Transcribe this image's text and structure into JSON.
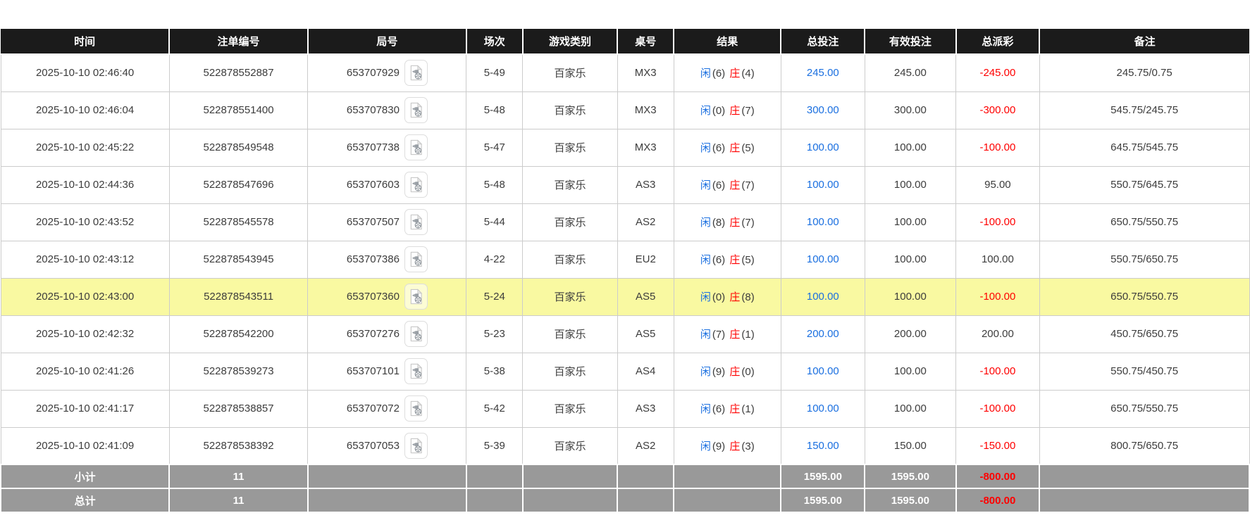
{
  "colors": {
    "header_bg": "#1b1b1b",
    "header_text": "#ffffff",
    "border": "#cccccc",
    "highlight_row_bg": "#f9f9a1",
    "player_blue": "#1a6fe0",
    "banker_red": "#ff0000",
    "negative_red": "#ff0000",
    "footer_bg": "#999999",
    "footer_text": "#ffffff"
  },
  "table": {
    "columns": [
      {
        "key": "time",
        "label": "时间",
        "width": 13.5
      },
      {
        "key": "bet_id",
        "label": "注单编号",
        "width": 11.1
      },
      {
        "key": "round",
        "label": "局号",
        "width": 12.7
      },
      {
        "key": "session",
        "label": "场次",
        "width": 4.5
      },
      {
        "key": "game_type",
        "label": "游戏类别",
        "width": 7.6
      },
      {
        "key": "table_no",
        "label": "桌号",
        "width": 4.5
      },
      {
        "key": "result",
        "label": "结果",
        "width": 8.6
      },
      {
        "key": "total_bet",
        "label": "总投注",
        "width": 6.7
      },
      {
        "key": "valid_bet",
        "label": "有效投注",
        "width": 7.3
      },
      {
        "key": "payout",
        "label": "总派彩",
        "width": 6.7
      },
      {
        "key": "remark",
        "label": "备注",
        "width": 16.8
      }
    ],
    "icons": {
      "round_video": "video-file-icon"
    },
    "rows": [
      {
        "time": "2025-10-10 02:46:40",
        "bet_id": "522878552887",
        "round": "653707929",
        "session": "5-49",
        "game_type": "百家乐",
        "table_no": "MX3",
        "result": {
          "player": "闲",
          "player_score": "(6)",
          "banker": "庄",
          "banker_score": "(4)"
        },
        "total_bet": "245.00",
        "valid_bet": "245.00",
        "payout": "-245.00",
        "remark": "245.75/0.75",
        "highlighted": false
      },
      {
        "time": "2025-10-10 02:46:04",
        "bet_id": "522878551400",
        "round": "653707830",
        "session": "5-48",
        "game_type": "百家乐",
        "table_no": "MX3",
        "result": {
          "player": "闲",
          "player_score": "(0)",
          "banker": "庄",
          "banker_score": "(7)"
        },
        "total_bet": "300.00",
        "valid_bet": "300.00",
        "payout": "-300.00",
        "remark": "545.75/245.75",
        "highlighted": false
      },
      {
        "time": "2025-10-10 02:45:22",
        "bet_id": "522878549548",
        "round": "653707738",
        "session": "5-47",
        "game_type": "百家乐",
        "table_no": "MX3",
        "result": {
          "player": "闲",
          "player_score": "(6)",
          "banker": "庄",
          "banker_score": "(5)"
        },
        "total_bet": "100.00",
        "valid_bet": "100.00",
        "payout": "-100.00",
        "remark": "645.75/545.75",
        "highlighted": false
      },
      {
        "time": "2025-10-10 02:44:36",
        "bet_id": "522878547696",
        "round": "653707603",
        "session": "5-48",
        "game_type": "百家乐",
        "table_no": "AS3",
        "result": {
          "player": "闲",
          "player_score": "(6)",
          "banker": "庄",
          "banker_score": "(7)"
        },
        "total_bet": "100.00",
        "valid_bet": "100.00",
        "payout": "95.00",
        "remark": "550.75/645.75",
        "highlighted": false
      },
      {
        "time": "2025-10-10 02:43:52",
        "bet_id": "522878545578",
        "round": "653707507",
        "session": "5-44",
        "game_type": "百家乐",
        "table_no": "AS2",
        "result": {
          "player": "闲",
          "player_score": "(8)",
          "banker": "庄",
          "banker_score": "(7)"
        },
        "total_bet": "100.00",
        "valid_bet": "100.00",
        "payout": "-100.00",
        "remark": "650.75/550.75",
        "highlighted": false
      },
      {
        "time": "2025-10-10 02:43:12",
        "bet_id": "522878543945",
        "round": "653707386",
        "session": "4-22",
        "game_type": "百家乐",
        "table_no": "EU2",
        "result": {
          "player": "闲",
          "player_score": "(6)",
          "banker": "庄",
          "banker_score": "(5)"
        },
        "total_bet": "100.00",
        "valid_bet": "100.00",
        "payout": "100.00",
        "remark": "550.75/650.75",
        "highlighted": false
      },
      {
        "time": "2025-10-10 02:43:00",
        "bet_id": "522878543511",
        "round": "653707360",
        "session": "5-24",
        "game_type": "百家乐",
        "table_no": "AS5",
        "result": {
          "player": "闲",
          "player_score": "(0)",
          "banker": "庄",
          "banker_score": "(8)"
        },
        "total_bet": "100.00",
        "valid_bet": "100.00",
        "payout": "-100.00",
        "remark": "650.75/550.75",
        "highlighted": true
      },
      {
        "time": "2025-10-10 02:42:32",
        "bet_id": "522878542200",
        "round": "653707276",
        "session": "5-23",
        "game_type": "百家乐",
        "table_no": "AS5",
        "result": {
          "player": "闲",
          "player_score": "(7)",
          "banker": "庄",
          "banker_score": "(1)"
        },
        "total_bet": "200.00",
        "valid_bet": "200.00",
        "payout": "200.00",
        "remark": "450.75/650.75",
        "highlighted": false
      },
      {
        "time": "2025-10-10 02:41:26",
        "bet_id": "522878539273",
        "round": "653707101",
        "session": "5-38",
        "game_type": "百家乐",
        "table_no": "AS4",
        "result": {
          "player": "闲",
          "player_score": "(9)",
          "banker": "庄",
          "banker_score": "(0)"
        },
        "total_bet": "100.00",
        "valid_bet": "100.00",
        "payout": "-100.00",
        "remark": "550.75/450.75",
        "highlighted": false
      },
      {
        "time": "2025-10-10 02:41:17",
        "bet_id": "522878538857",
        "round": "653707072",
        "session": "5-42",
        "game_type": "百家乐",
        "table_no": "AS3",
        "result": {
          "player": "闲",
          "player_score": "(6)",
          "banker": "庄",
          "banker_score": "(1)"
        },
        "total_bet": "100.00",
        "valid_bet": "100.00",
        "payout": "-100.00",
        "remark": "650.75/550.75",
        "highlighted": false
      },
      {
        "time": "2025-10-10 02:41:09",
        "bet_id": "522878538392",
        "round": "653707053",
        "session": "5-39",
        "game_type": "百家乐",
        "table_no": "AS2",
        "result": {
          "player": "闲",
          "player_score": "(9)",
          "banker": "庄",
          "banker_score": "(3)"
        },
        "total_bet": "150.00",
        "valid_bet": "150.00",
        "payout": "-150.00",
        "remark": "800.75/650.75",
        "highlighted": false
      }
    ],
    "footer": [
      {
        "label": "小计",
        "count": "11",
        "total_bet": "1595.00",
        "valid_bet": "1595.00",
        "payout": "-800.00",
        "remark": ""
      },
      {
        "label": "总计",
        "count": "11",
        "total_bet": "1595.00",
        "valid_bet": "1595.00",
        "payout": "-800.00",
        "remark": ""
      }
    ]
  }
}
